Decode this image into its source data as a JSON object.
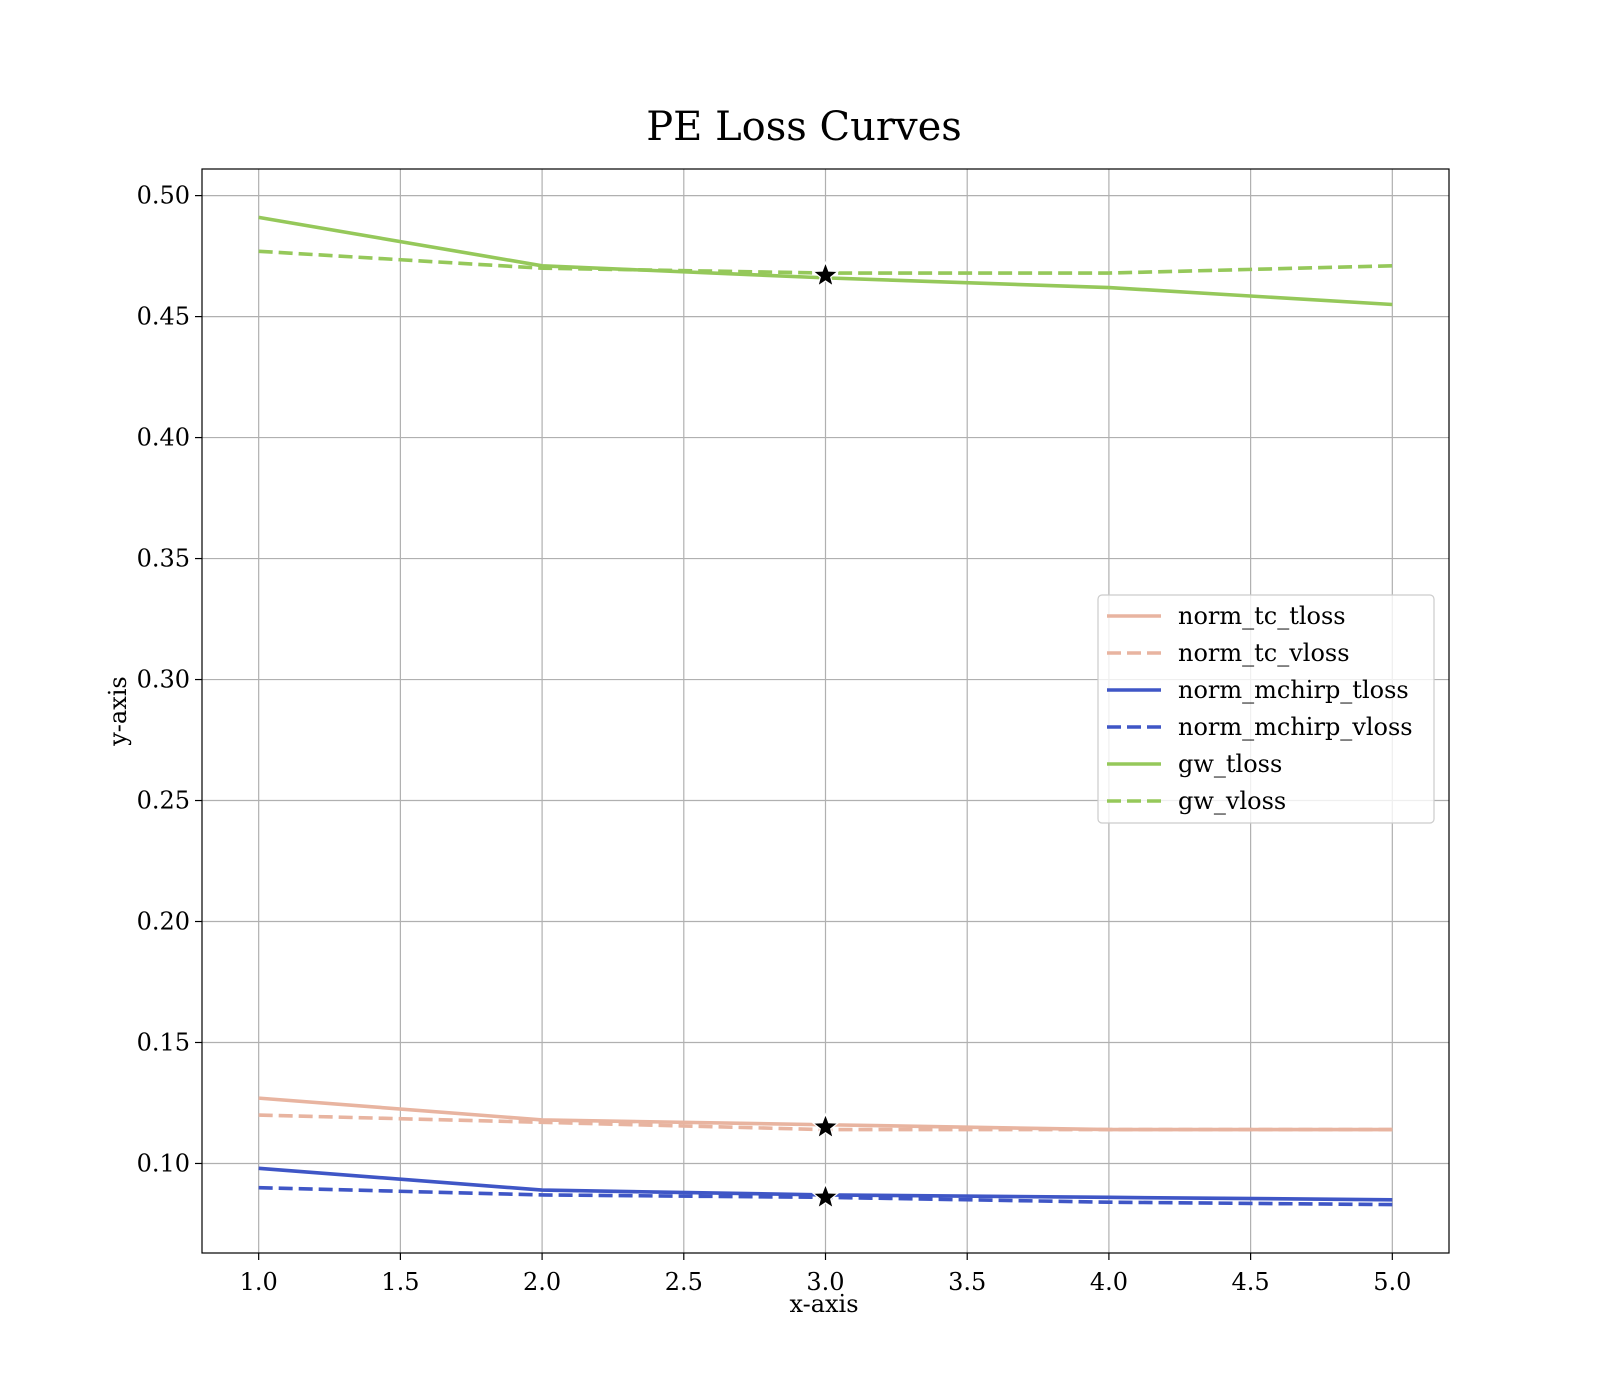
{
  "chart_data": {
    "type": "line",
    "title": "PE Loss Curves",
    "xlabel": "x-axis",
    "ylabel": "y-axis",
    "xlim": [
      0.8,
      5.2
    ],
    "ylim": [
      0.063,
      0.511
    ],
    "xticks": [
      1.0,
      1.5,
      2.0,
      2.5,
      3.0,
      3.5,
      4.0,
      4.5,
      5.0
    ],
    "xtick_labels": [
      "1.0",
      "1.5",
      "2.0",
      "2.5",
      "3.0",
      "3.5",
      "4.0",
      "4.5",
      "5.0"
    ],
    "yticks": [
      0.1,
      0.15,
      0.2,
      0.25,
      0.3,
      0.35,
      0.4,
      0.45,
      0.5
    ],
    "ytick_labels": [
      "0.10",
      "0.15",
      "0.20",
      "0.25",
      "0.30",
      "0.35",
      "0.40",
      "0.45",
      "0.50"
    ],
    "grid": true,
    "legend_position": "center-right",
    "x": [
      1,
      2,
      3,
      4,
      5
    ],
    "series": [
      {
        "name": "norm_tc_tloss",
        "values": [
          0.127,
          0.118,
          0.116,
          0.114,
          0.114
        ],
        "color": "#e8b4a0",
        "dash": "solid"
      },
      {
        "name": "norm_tc_vloss",
        "values": [
          0.12,
          0.117,
          0.114,
          0.114,
          0.114
        ],
        "color": "#e8b4a0",
        "dash": "dashed"
      },
      {
        "name": "norm_mchirp_tloss",
        "values": [
          0.098,
          0.089,
          0.087,
          0.086,
          0.085
        ],
        "color": "#3f56c6",
        "dash": "solid"
      },
      {
        "name": "norm_mchirp_vloss",
        "values": [
          0.09,
          0.087,
          0.086,
          0.084,
          0.083
        ],
        "color": "#3f56c6",
        "dash": "dashed"
      },
      {
        "name": "gw_tloss",
        "values": [
          0.491,
          0.471,
          0.466,
          0.462,
          0.455
        ],
        "color": "#95c85a",
        "dash": "solid"
      },
      {
        "name": "gw_vloss",
        "values": [
          0.477,
          0.47,
          0.468,
          0.468,
          0.471
        ],
        "color": "#95c85a",
        "dash": "dashed"
      }
    ],
    "markers": [
      {
        "marker": "star",
        "x": 3.0,
        "y": 0.467,
        "color": "#000000"
      },
      {
        "marker": "star",
        "x": 3.0,
        "y": 0.115,
        "color": "#000000"
      },
      {
        "marker": "star",
        "x": 3.0,
        "y": 0.086,
        "color": "#000000"
      }
    ]
  }
}
